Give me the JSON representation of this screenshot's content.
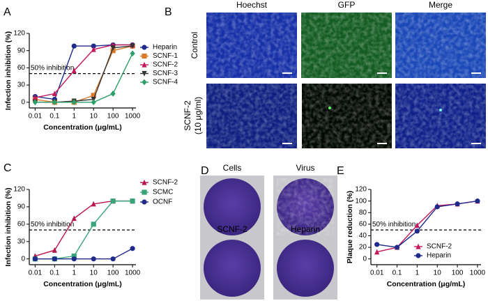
{
  "chart_data": [
    {
      "type": "line",
      "panel": "A",
      "xlabel": "Concentration (μg/mL)",
      "ylabel": "Infection inhibition (%)",
      "xlog": true,
      "xlim": [
        0.005,
        1500
      ],
      "xticks": [
        0.01,
        0.1,
        1,
        10,
        100,
        1000
      ],
      "ylim": [
        -10,
        120
      ],
      "yticks": [
        0,
        30,
        60,
        90,
        120
      ],
      "x": [
        0.01,
        0.1,
        1,
        10,
        100,
        1000
      ],
      "reference": {
        "value": 50,
        "label": "50% inhibition"
      },
      "legend": "right",
      "series": [
        {
          "name": "Heparin",
          "color": "#1f2a8a",
          "marker": "circle",
          "values": [
            10,
            5,
            98,
            98,
            100,
            100
          ]
        },
        {
          "name": "SCNF-1",
          "color": "#d97a2b",
          "marker": "square",
          "values": [
            5,
            0,
            0,
            12,
            90,
            98
          ]
        },
        {
          "name": "SCNF-2",
          "color": "#c2185b",
          "marker": "triangle",
          "values": [
            8,
            15,
            55,
            92,
            100,
            100
          ]
        },
        {
          "name": "SCNF-3",
          "color": "#333333",
          "marker": "triangle-down",
          "values": [
            0,
            0,
            2,
            5,
            95,
            98
          ]
        },
        {
          "name": "SCNF-4",
          "color": "#2e9e6b",
          "marker": "diamond",
          "values": [
            0,
            0,
            0,
            0,
            15,
            85
          ]
        }
      ]
    },
    {
      "type": "line",
      "panel": "C",
      "xlabel": "Concentration (μg/mL)",
      "ylabel": "Infection inhibition (%)",
      "xlog": true,
      "xlim": [
        0.005,
        1500
      ],
      "xticks": [
        0.01,
        0.1,
        1,
        10,
        100,
        1000
      ],
      "ylim": [
        -10,
        120
      ],
      "yticks": [
        0,
        30,
        60,
        90,
        120
      ],
      "x": [
        0.01,
        0.1,
        1,
        10,
        100,
        1000
      ],
      "reference": {
        "value": 50,
        "label": "50% inhibition"
      },
      "legend": "right",
      "series": [
        {
          "name": "SCNF-2",
          "color": "#b5174a",
          "marker": "triangle",
          "values": [
            5,
            15,
            70,
            95,
            100,
            100
          ]
        },
        {
          "name": "SCMC",
          "color": "#3aa37a",
          "marker": "square",
          "values": [
            0,
            0,
            5,
            60,
            100,
            100
          ]
        },
        {
          "name": "OCNF",
          "color": "#1f2a8a",
          "marker": "circle",
          "values": [
            0,
            0,
            0,
            0,
            0,
            18
          ]
        }
      ]
    },
    {
      "type": "line",
      "panel": "E",
      "xlabel": "Concentration (μg/mL)",
      "ylabel": "Plaque reduction (%)",
      "xlog": true,
      "xlim": [
        0.005,
        1500
      ],
      "xticks": [
        0.01,
        0.1,
        1,
        10,
        100,
        1000
      ],
      "ylim": [
        -10,
        120
      ],
      "yticks": [
        0,
        20,
        40,
        60,
        80,
        100,
        120
      ],
      "x": [
        0.01,
        0.1,
        1,
        10,
        100,
        1000
      ],
      "reference": {
        "value": 50,
        "label": "50% inhibition"
      },
      "legend": "bottom-right",
      "series": [
        {
          "name": "SCNF-2",
          "color": "#c2185b",
          "marker": "triangle",
          "values": [
            12,
            20,
            58,
            92,
            95,
            100
          ]
        },
        {
          "name": "Heparin",
          "color": "#1f2a8a",
          "marker": "circle",
          "values": [
            25,
            20,
            48,
            90,
            95,
            100
          ]
        }
      ]
    }
  ],
  "image_panels": [
    {
      "panel": "B",
      "columns": [
        "Hoechst",
        "GFP",
        "Merge"
      ],
      "rows": [
        [
          "Control"
        ],
        [
          "SCNF-2",
          "(10 μg/ml)"
        ]
      ]
    },
    {
      "panel": "D",
      "wells": [
        "Cells",
        "Virus",
        "SCNF-2",
        "Heparin"
      ]
    }
  ]
}
